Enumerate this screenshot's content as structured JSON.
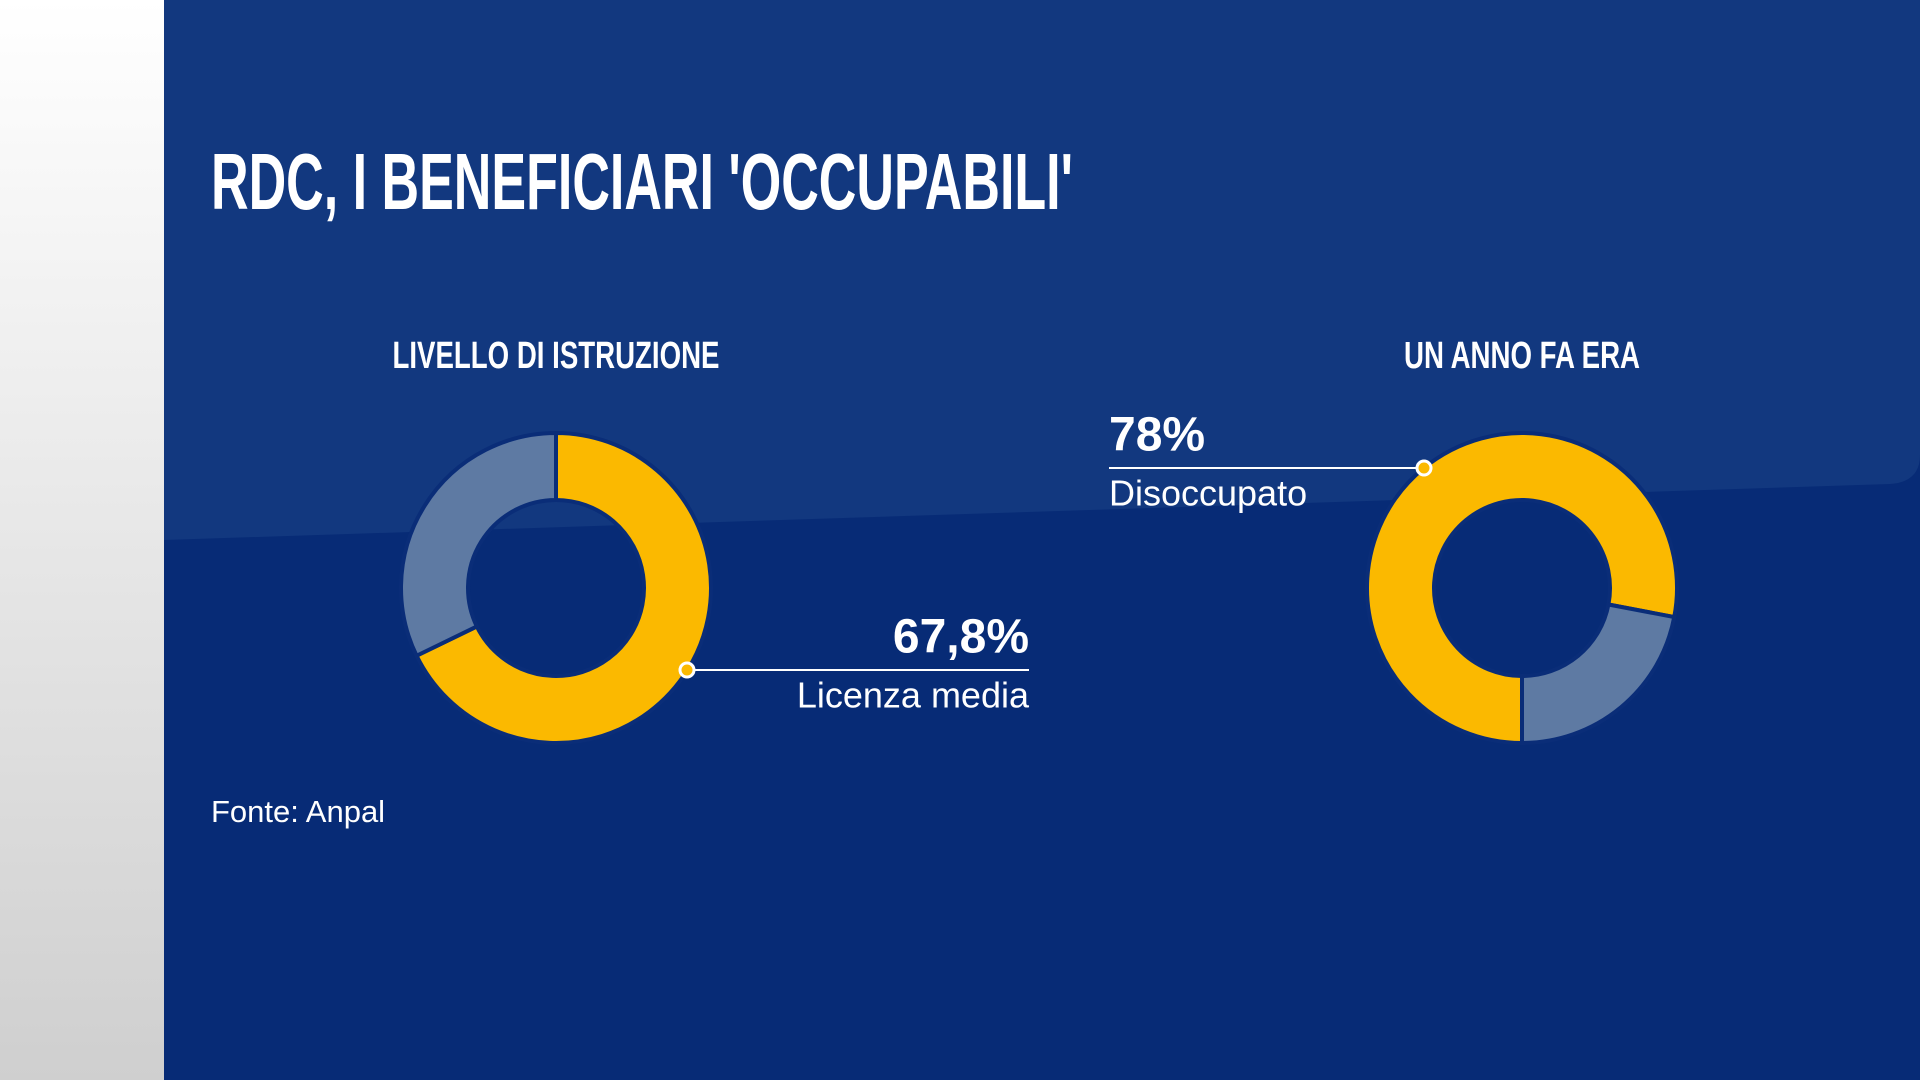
{
  "title": "RDC, I BENEFICIARI 'OCCUPABILI'",
  "source": "Fonte: Anpal",
  "chart_data": [
    {
      "type": "donut",
      "title": "LIVELLO DI ISTRUZIONE",
      "categories": [
        "Licenza media",
        null
      ],
      "values": [
        67.8,
        32.2
      ],
      "value_labels": [
        "67,8%",
        null
      ],
      "colors": [
        "#fbb900",
        "#5e7aa3"
      ]
    },
    {
      "type": "donut",
      "title": "UN ANNO FA ERA",
      "categories": [
        "Disoccupato",
        null
      ],
      "values": [
        78,
        22
      ],
      "value_labels": [
        "78%",
        null
      ],
      "colors": [
        "#fbb900",
        "#5e7aa3"
      ]
    }
  ]
}
